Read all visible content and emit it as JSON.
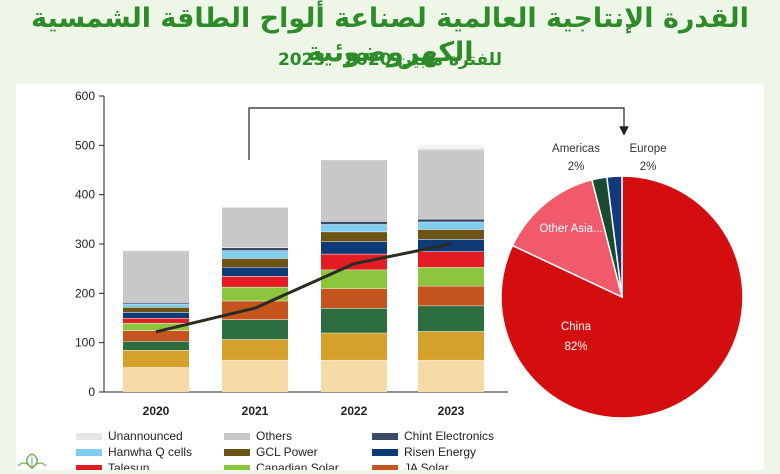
{
  "header": {
    "title": "القدرة الإنتاجية العالمية لصناعة ألواح الطاقة الشمسية الكهروضوئية",
    "subtitle": "للفترة مابين 2020 - 2023"
  },
  "colors": {
    "background": "#eef6e8",
    "title": "#2e8b2a",
    "line": "#2b2b1f"
  },
  "chart_data": [
    {
      "type": "bar",
      "stacked": true,
      "categories": [
        "2020",
        "2021",
        "2022",
        "2023"
      ],
      "ylim": [
        0,
        600
      ],
      "yticks": [
        0,
        100,
        200,
        300,
        400,
        500,
        600
      ],
      "series": [
        {
          "name": "",
          "color": "#f7dba7",
          "values": [
            50,
            65,
            65,
            65
          ]
        },
        {
          "name": "",
          "color": "#d6a12a",
          "values": [
            35,
            42,
            55,
            58
          ]
        },
        {
          "name": "",
          "color": "#2c6e3f",
          "values": [
            18,
            40,
            50,
            52
          ]
        },
        {
          "name": "JA Solar",
          "color": "#c5541e",
          "values": [
            22,
            38,
            40,
            40
          ]
        },
        {
          "name": "Canadian Solar",
          "color": "#8cc63f",
          "values": [
            15,
            28,
            38,
            38
          ]
        },
        {
          "name": "Talesun",
          "color": "#e31c23",
          "values": [
            10,
            22,
            32,
            32
          ]
        },
        {
          "name": "Risen Energy",
          "color": "#0d3b78",
          "values": [
            12,
            18,
            25,
            25
          ]
        },
        {
          "name": "GCL Power",
          "color": "#6b5414",
          "values": [
            10,
            18,
            20,
            20
          ]
        },
        {
          "name": "Hanwha Q cells",
          "color": "#7fcdef",
          "values": [
            7,
            16,
            15,
            15
          ]
        },
        {
          "name": "Chint Electronics",
          "color": "#3b4a66",
          "values": [
            3,
            6,
            6,
            6
          ]
        },
        {
          "name": "Others",
          "color": "#c8c8c8",
          "values": [
            105,
            82,
            125,
            142
          ]
        },
        {
          "name": "Unannounced",
          "color": "#e6e6e6",
          "values": [
            0,
            0,
            0,
            10
          ]
        }
      ],
      "line": {
        "name": "",
        "values": [
          122,
          170,
          260,
          300
        ],
        "color": "#2b2b1f"
      },
      "legend": [
        [
          "Unannounced",
          "Others",
          "Chint Electronics"
        ],
        [
          "Hanwha Q cells",
          "GCL Power",
          "Risen Energy"
        ],
        [
          "Talesun",
          "Canadian Solar",
          "JA Solar"
        ]
      ],
      "legend_colors": [
        [
          "#e6e6e6",
          "#c8c8c8",
          "#3b4a66"
        ],
        [
          "#7fcdef",
          "#6b5414",
          "#0d3b78"
        ],
        [
          "#e31c23",
          "#8cc63f",
          "#c5541e"
        ]
      ]
    },
    {
      "type": "pie",
      "slices": [
        {
          "label": "China",
          "value": 82,
          "text": "82%",
          "color": "#d40e0e"
        },
        {
          "label": "Other Asia...",
          "value": 14,
          "text": "",
          "color": "#f05a6a"
        },
        {
          "label": "Americas",
          "value": 2,
          "text": "2%",
          "color": "#1a4a32"
        },
        {
          "label": "Europe",
          "value": 2,
          "text": "2%",
          "color": "#12397a"
        }
      ]
    }
  ]
}
